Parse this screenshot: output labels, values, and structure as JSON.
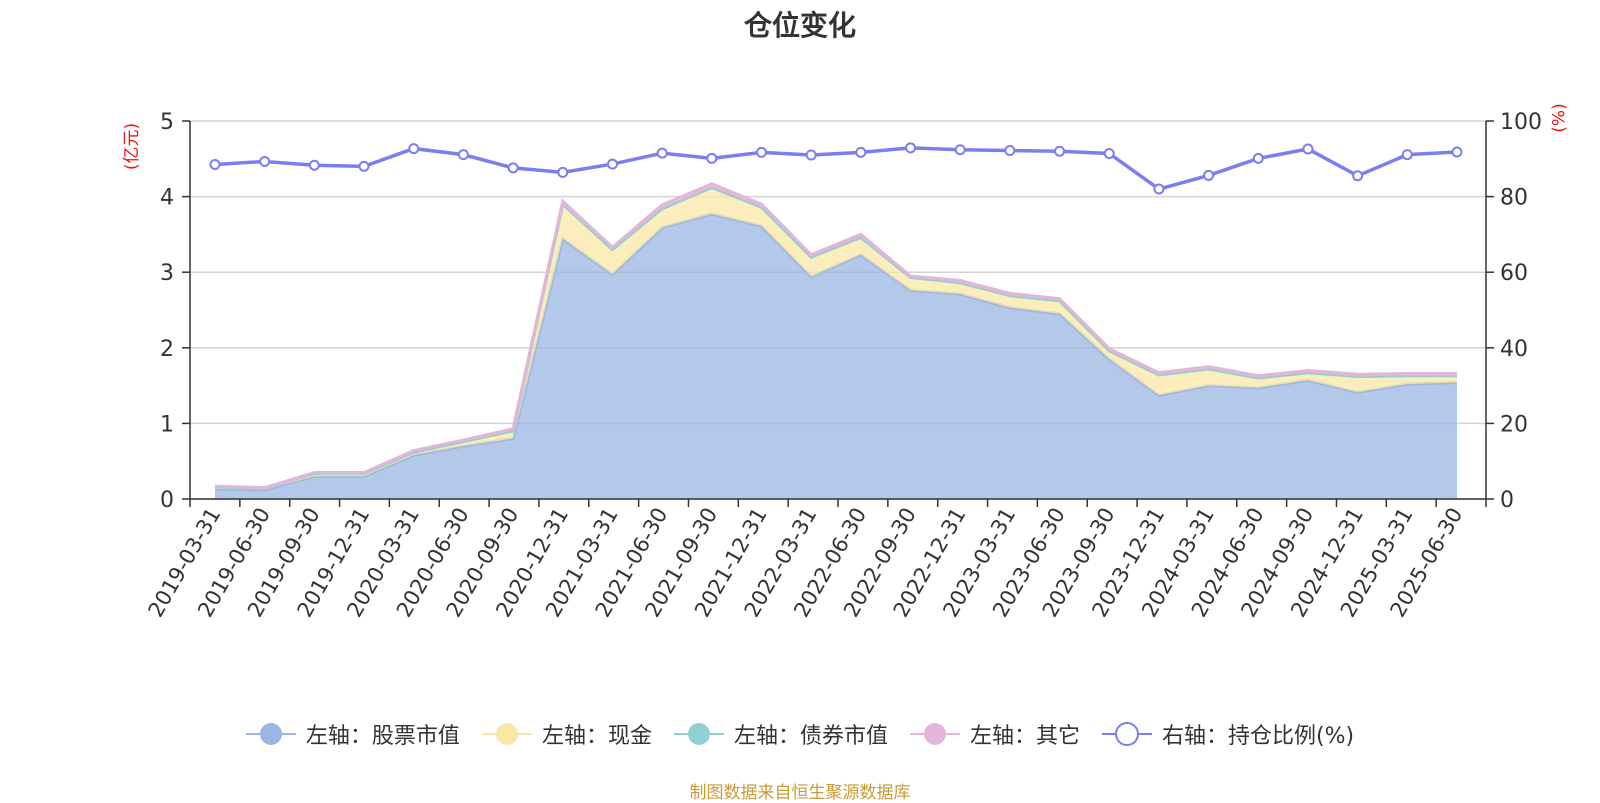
{
  "title": "仓位变化",
  "source_note": "制图数据来自恒生聚源数据库",
  "units": {
    "left": "(亿元)",
    "right": "(%)"
  },
  "chart_data": {
    "type": "area",
    "title": "仓位变化",
    "categories": [
      "2019-03-31",
      "2019-06-30",
      "2019-09-30",
      "2019-12-31",
      "2020-03-31",
      "2020-06-30",
      "2020-09-30",
      "2020-12-31",
      "2021-03-31",
      "2021-06-30",
      "2021-09-30",
      "2021-12-31",
      "2022-03-31",
      "2022-06-30",
      "2022-09-30",
      "2022-12-31",
      "2023-03-31",
      "2023-06-30",
      "2023-09-30",
      "2023-12-31",
      "2024-03-31",
      "2024-06-30",
      "2024-09-30",
      "2024-12-31",
      "2025-03-31",
      "2025-06-30"
    ],
    "left_axis": {
      "unit": "(亿元)",
      "ylim": [
        0,
        5
      ],
      "ticks": [
        0,
        1,
        2,
        3,
        4,
        5
      ]
    },
    "right_axis": {
      "unit": "(%)",
      "ylim": [
        0,
        100
      ],
      "ticks": [
        0,
        20,
        40,
        60,
        80,
        100
      ]
    },
    "grid": true,
    "legend_position": "bottom",
    "series": [
      {
        "name": "左轴：股票市值",
        "axis": "left",
        "stacked": true,
        "color": "#9bb6e3",
        "values": [
          0.13,
          0.12,
          0.3,
          0.3,
          0.58,
          0.7,
          0.8,
          3.44,
          2.97,
          3.59,
          3.77,
          3.61,
          2.94,
          3.23,
          2.76,
          2.71,
          2.53,
          2.45,
          1.85,
          1.37,
          1.5,
          1.47,
          1.57,
          1.41,
          1.52,
          1.54
        ]
      },
      {
        "name": "左轴：现金",
        "axis": "left",
        "stacked": true,
        "color": "#f9e7a6",
        "values": [
          0.03,
          0.02,
          0.04,
          0.04,
          0.04,
          0.06,
          0.1,
          0.46,
          0.33,
          0.25,
          0.35,
          0.25,
          0.26,
          0.23,
          0.17,
          0.15,
          0.16,
          0.17,
          0.11,
          0.27,
          0.22,
          0.13,
          0.1,
          0.21,
          0.11,
          0.09
        ]
      },
      {
        "name": "左轴：债券市值",
        "axis": "left",
        "stacked": true,
        "color": "#90d0d0",
        "values": [
          0,
          0,
          0,
          0,
          0,
          0,
          0,
          0,
          0,
          0,
          0,
          0,
          0,
          0,
          0,
          0,
          0,
          0,
          0,
          0,
          0,
          0,
          0,
          0,
          0,
          0
        ]
      },
      {
        "name": "左轴：其它",
        "axis": "left",
        "stacked": true,
        "color": "#e4b5d9",
        "values": [
          0.01,
          0.01,
          0.01,
          0.01,
          0.02,
          0.02,
          0.03,
          0.04,
          0.03,
          0.05,
          0.05,
          0.04,
          0.03,
          0.04,
          0.02,
          0.03,
          0.03,
          0.03,
          0.03,
          0.03,
          0.03,
          0.03,
          0.03,
          0.03,
          0.03,
          0.03
        ]
      },
      {
        "name": "右轴：持仓比例(%)",
        "axis": "right",
        "type": "line",
        "color": "#7b7ef0",
        "values": [
          88.5,
          89.3,
          88.3,
          88.0,
          92.7,
          91.1,
          87.6,
          86.4,
          88.6,
          91.5,
          90.1,
          91.7,
          91.0,
          91.7,
          92.9,
          92.4,
          92.2,
          92.0,
          91.4,
          82.0,
          85.6,
          90.1,
          92.6,
          85.5,
          91.1,
          91.8
        ]
      }
    ]
  },
  "legend": [
    {
      "label": "左轴：股票市值",
      "icon": "filled-circle-line",
      "color": "#9bb6e3"
    },
    {
      "label": "左轴：现金",
      "icon": "filled-circle-line",
      "color": "#f9e7a6"
    },
    {
      "label": "左轴：债券市值",
      "icon": "filled-circle-line",
      "color": "#90d0d0"
    },
    {
      "label": "左轴：其它",
      "icon": "filled-circle-line",
      "color": "#e4b5d9"
    },
    {
      "label": "右轴：持仓比例(%)",
      "icon": "hollow-circle-line",
      "color": "#7b7ef0"
    }
  ]
}
